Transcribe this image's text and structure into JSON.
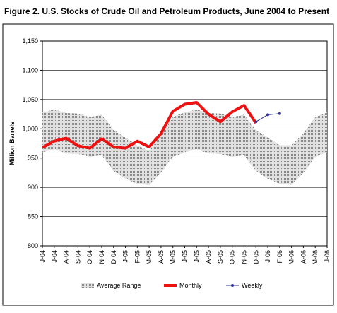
{
  "chart_data": {
    "type": "line",
    "title": "Figure 2.  U.S. Stocks of Crude Oil and Petroleum Products, June 2004 to Present",
    "y_label": "Million Barrels",
    "categories": [
      "J-04",
      "J-04",
      "A-04",
      "S-04",
      "O-04",
      "N-04",
      "D-04",
      "J-05",
      "F-05",
      "M-05",
      "A-05",
      "M-05",
      "J-05",
      "J-05",
      "A-05",
      "S-05",
      "O-05",
      "N-05",
      "D-05",
      "J-06",
      "F-06",
      "M-06",
      "A-06",
      "M-06",
      "J-06"
    ],
    "ylim": [
      800,
      1150
    ],
    "yticks": [
      800,
      850,
      900,
      950,
      {
        "value": 1000,
        "label": "1,000"
      },
      {
        "value": 1050,
        "label": "1,050"
      },
      {
        "value": 1100,
        "label": "1,100"
      },
      {
        "value": 1150,
        "label": "1,150"
      }
    ],
    "grid": true,
    "legend": "bottom",
    "series": [
      {
        "name": "Average Range",
        "kind": "range",
        "color": "#c4c4c4",
        "high": [
          1028,
          1033,
          1027,
          1026,
          1020,
          1024,
          998,
          985,
          972,
          962,
          992,
          1020,
          1028,
          1033,
          1027,
          1026,
          1020,
          1024,
          998,
          985,
          972,
          972,
          992,
          1020,
          1028
        ],
        "low": [
          960,
          965,
          958,
          957,
          952,
          955,
          928,
          915,
          906,
          904,
          925,
          952,
          960,
          965,
          958,
          957,
          952,
          955,
          928,
          915,
          906,
          904,
          925,
          952,
          960
        ]
      },
      {
        "name": "Monthly",
        "kind": "line",
        "color": "#ee1111",
        "values": [
          968,
          979,
          984,
          971,
          967,
          983,
          969,
          967,
          979,
          969,
          992,
          1030,
          1042,
          1045,
          1025,
          1012,
          1029,
          1040,
          1010,
          null,
          null,
          null,
          null,
          null,
          null
        ]
      },
      {
        "name": "Weekly",
        "kind": "dots",
        "color": "#333399",
        "values": [
          null,
          null,
          null,
          null,
          null,
          null,
          null,
          null,
          null,
          null,
          null,
          null,
          null,
          null,
          null,
          null,
          null,
          null,
          1012,
          1024,
          1026,
          null,
          null,
          null,
          null
        ]
      }
    ]
  }
}
